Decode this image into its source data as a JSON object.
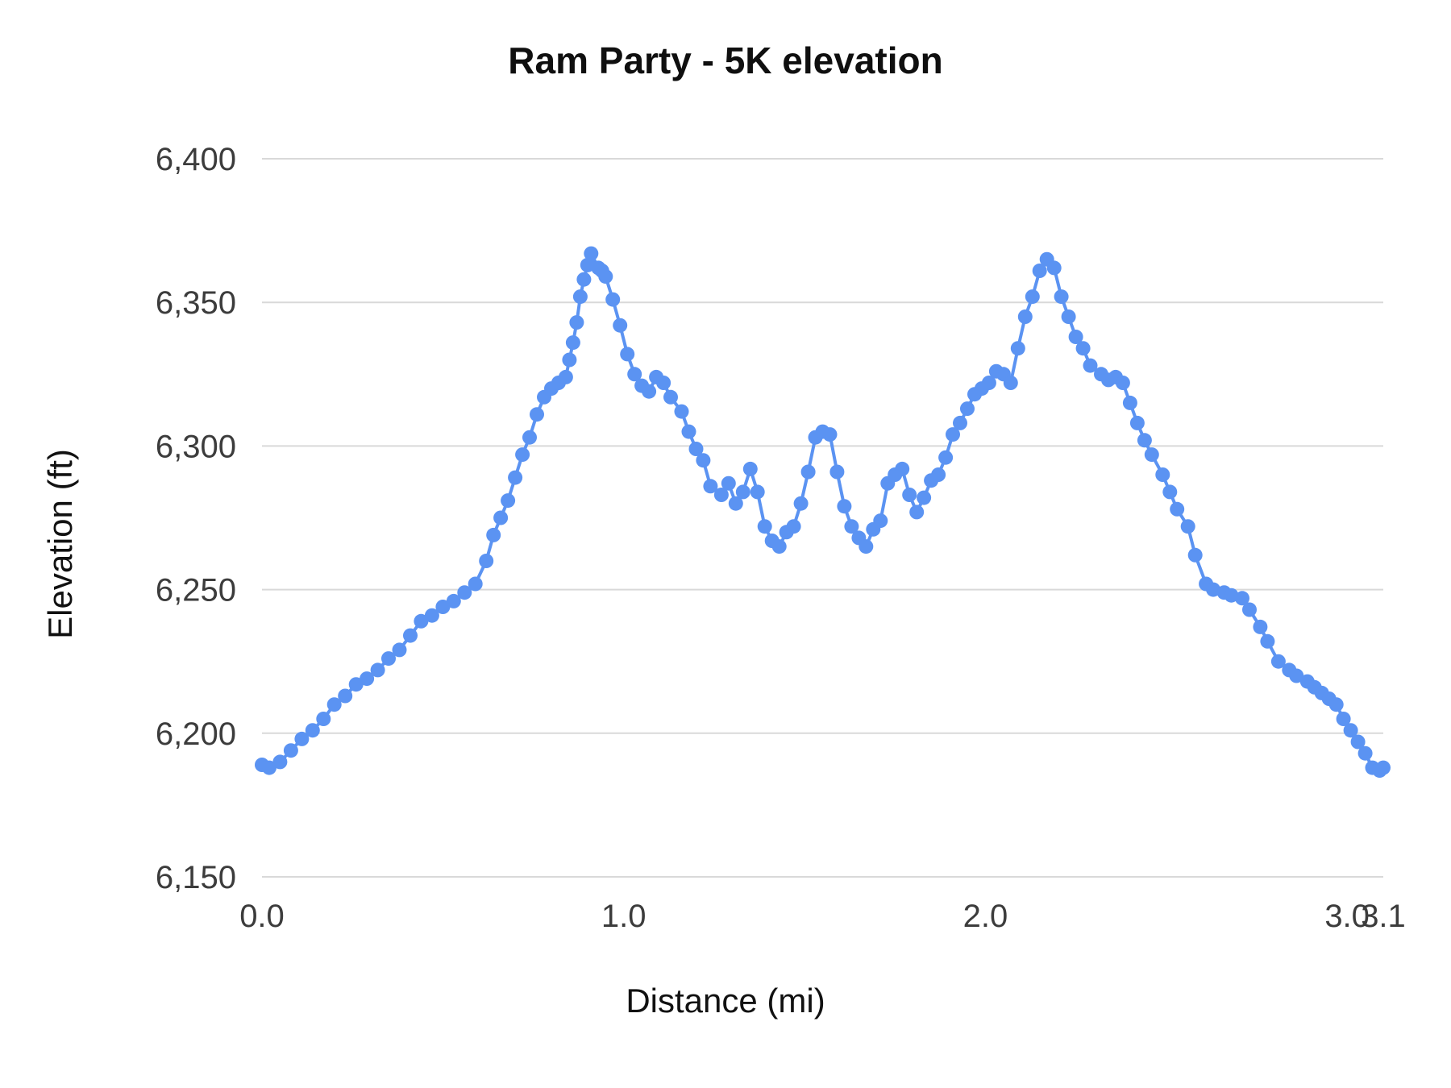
{
  "chart_data": {
    "type": "line",
    "title": "Ram Party - 5K elevation",
    "xlabel": "Distance (mi)",
    "ylabel": "Elevation (ft)",
    "xlim": [
      0,
      3.1
    ],
    "ylim": [
      6150,
      6400
    ],
    "x_ticks": [
      0.0,
      1.0,
      2.0,
      3.0,
      3.1
    ],
    "x_tick_labels": [
      "0.0",
      "1.0",
      "2.0",
      "3.0",
      "3.1"
    ],
    "y_ticks": [
      6150,
      6200,
      6250,
      6300,
      6350,
      6400
    ],
    "y_tick_labels": [
      "6,150",
      "6,200",
      "6,250",
      "6,300",
      "6,350",
      "6,400"
    ],
    "grid": "horizontal",
    "legend": "none",
    "marker": "circle",
    "series_color": "#5b93f2",
    "points": [
      [
        0.0,
        6189
      ],
      [
        0.02,
        6188
      ],
      [
        0.05,
        6190
      ],
      [
        0.08,
        6194
      ],
      [
        0.11,
        6198
      ],
      [
        0.14,
        6201
      ],
      [
        0.17,
        6205
      ],
      [
        0.2,
        6210
      ],
      [
        0.23,
        6213
      ],
      [
        0.26,
        6217
      ],
      [
        0.29,
        6219
      ],
      [
        0.32,
        6222
      ],
      [
        0.35,
        6226
      ],
      [
        0.38,
        6229
      ],
      [
        0.41,
        6234
      ],
      [
        0.44,
        6239
      ],
      [
        0.47,
        6241
      ],
      [
        0.5,
        6244
      ],
      [
        0.53,
        6246
      ],
      [
        0.56,
        6249
      ],
      [
        0.59,
        6252
      ],
      [
        0.62,
        6260
      ],
      [
        0.64,
        6269
      ],
      [
        0.66,
        6275
      ],
      [
        0.68,
        6281
      ],
      [
        0.7,
        6289
      ],
      [
        0.72,
        6297
      ],
      [
        0.74,
        6303
      ],
      [
        0.76,
        6311
      ],
      [
        0.78,
        6317
      ],
      [
        0.8,
        6320
      ],
      [
        0.82,
        6322
      ],
      [
        0.84,
        6324
      ],
      [
        0.85,
        6330
      ],
      [
        0.86,
        6336
      ],
      [
        0.87,
        6343
      ],
      [
        0.88,
        6352
      ],
      [
        0.89,
        6358
      ],
      [
        0.9,
        6363
      ],
      [
        0.91,
        6367
      ],
      [
        0.93,
        6362
      ],
      [
        0.94,
        6361
      ],
      [
        0.95,
        6359
      ],
      [
        0.97,
        6351
      ],
      [
        0.99,
        6342
      ],
      [
        1.01,
        6332
      ],
      [
        1.03,
        6325
      ],
      [
        1.05,
        6321
      ],
      [
        1.07,
        6319
      ],
      [
        1.09,
        6324
      ],
      [
        1.11,
        6322
      ],
      [
        1.13,
        6317
      ],
      [
        1.16,
        6312
      ],
      [
        1.18,
        6305
      ],
      [
        1.2,
        6299
      ],
      [
        1.22,
        6295
      ],
      [
        1.24,
        6286
      ],
      [
        1.27,
        6283
      ],
      [
        1.29,
        6287
      ],
      [
        1.31,
        6280
      ],
      [
        1.33,
        6284
      ],
      [
        1.35,
        6292
      ],
      [
        1.37,
        6284
      ],
      [
        1.39,
        6272
      ],
      [
        1.41,
        6267
      ],
      [
        1.43,
        6265
      ],
      [
        1.45,
        6270
      ],
      [
        1.47,
        6272
      ],
      [
        1.49,
        6280
      ],
      [
        1.51,
        6291
      ],
      [
        1.53,
        6303
      ],
      [
        1.55,
        6305
      ],
      [
        1.57,
        6304
      ],
      [
        1.59,
        6291
      ],
      [
        1.61,
        6279
      ],
      [
        1.63,
        6272
      ],
      [
        1.65,
        6268
      ],
      [
        1.67,
        6265
      ],
      [
        1.69,
        6271
      ],
      [
        1.71,
        6274
      ],
      [
        1.73,
        6287
      ],
      [
        1.75,
        6290
      ],
      [
        1.77,
        6292
      ],
      [
        1.79,
        6283
      ],
      [
        1.81,
        6277
      ],
      [
        1.83,
        6282
      ],
      [
        1.85,
        6288
      ],
      [
        1.87,
        6290
      ],
      [
        1.89,
        6296
      ],
      [
        1.91,
        6304
      ],
      [
        1.93,
        6308
      ],
      [
        1.95,
        6313
      ],
      [
        1.97,
        6318
      ],
      [
        1.99,
        6320
      ],
      [
        2.01,
        6322
      ],
      [
        2.03,
        6326
      ],
      [
        2.05,
        6325
      ],
      [
        2.07,
        6322
      ],
      [
        2.09,
        6334
      ],
      [
        2.11,
        6345
      ],
      [
        2.13,
        6352
      ],
      [
        2.15,
        6361
      ],
      [
        2.17,
        6365
      ],
      [
        2.19,
        6362
      ],
      [
        2.21,
        6352
      ],
      [
        2.23,
        6345
      ],
      [
        2.25,
        6338
      ],
      [
        2.27,
        6334
      ],
      [
        2.29,
        6328
      ],
      [
        2.32,
        6325
      ],
      [
        2.34,
        6323
      ],
      [
        2.36,
        6324
      ],
      [
        2.38,
        6322
      ],
      [
        2.4,
        6315
      ],
      [
        2.42,
        6308
      ],
      [
        2.44,
        6302
      ],
      [
        2.46,
        6297
      ],
      [
        2.49,
        6290
      ],
      [
        2.51,
        6284
      ],
      [
        2.53,
        6278
      ],
      [
        2.56,
        6272
      ],
      [
        2.58,
        6262
      ],
      [
        2.61,
        6252
      ],
      [
        2.63,
        6250
      ],
      [
        2.66,
        6249
      ],
      [
        2.68,
        6248
      ],
      [
        2.71,
        6247
      ],
      [
        2.73,
        6243
      ],
      [
        2.76,
        6237
      ],
      [
        2.78,
        6232
      ],
      [
        2.81,
        6225
      ],
      [
        2.84,
        6222
      ],
      [
        2.86,
        6220
      ],
      [
        2.89,
        6218
      ],
      [
        2.91,
        6216
      ],
      [
        2.93,
        6214
      ],
      [
        2.95,
        6212
      ],
      [
        2.97,
        6210
      ],
      [
        2.99,
        6205
      ],
      [
        3.01,
        6201
      ],
      [
        3.03,
        6197
      ],
      [
        3.05,
        6193
      ],
      [
        3.07,
        6188
      ],
      [
        3.09,
        6187
      ],
      [
        3.1,
        6188
      ]
    ]
  }
}
